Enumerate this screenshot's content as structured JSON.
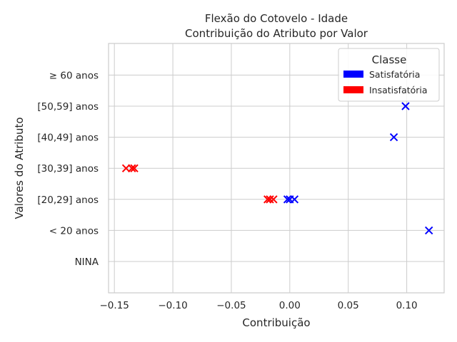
{
  "chart_data": {
    "type": "scatter",
    "title": "Flexão do Cotovelo - Idade",
    "subtitle": "Contribuição do Atributo por Valor",
    "xlabel": "Contribuição",
    "ylabel": "Valores do Atributo",
    "xlim": [
      -0.155,
      0.132
    ],
    "x_ticks": [
      -0.15,
      -0.1,
      -0.05,
      0.0,
      0.05,
      0.1
    ],
    "x_tick_labels": [
      "−0.15",
      "−0.10",
      "−0.05",
      "0.00",
      "0.05",
      "0.10"
    ],
    "categories": [
      "NINA",
      "< 20 anos",
      "[20,29] anos",
      "[30,39] anos",
      "[40,49] anos",
      "[50,59] anos",
      "≥ 60 anos"
    ],
    "grid": true,
    "marker": "x",
    "legend": {
      "title": "Classe",
      "placement": "top-right",
      "entries": [
        {
          "label": "Satisfatória",
          "color": "#0000ff"
        },
        {
          "label": "Insatisfatória",
          "color": "#ff0000"
        }
      ]
    },
    "series": [
      {
        "name": "Satisfatória",
        "color": "#0000ff",
        "points": [
          {
            "x": 0.119,
            "y": "< 20 anos"
          },
          {
            "x": -0.002,
            "y": "[20,29] anos"
          },
          {
            "x": 0.0,
            "y": "[20,29] anos"
          },
          {
            "x": 0.004,
            "y": "[20,29] anos"
          },
          {
            "x": 0.089,
            "y": "[40,49] anos"
          },
          {
            "x": 0.099,
            "y": "[50,59] anos"
          }
        ]
      },
      {
        "name": "Insatisfatória",
        "color": "#ff0000",
        "points": [
          {
            "x": -0.019,
            "y": "[20,29] anos"
          },
          {
            "x": -0.017,
            "y": "[20,29] anos"
          },
          {
            "x": -0.014,
            "y": "[20,29] anos"
          },
          {
            "x": -0.14,
            "y": "[30,39] anos"
          },
          {
            "x": -0.135,
            "y": "[30,39] anos"
          },
          {
            "x": -0.133,
            "y": "[30,39] anos"
          }
        ]
      }
    ]
  }
}
